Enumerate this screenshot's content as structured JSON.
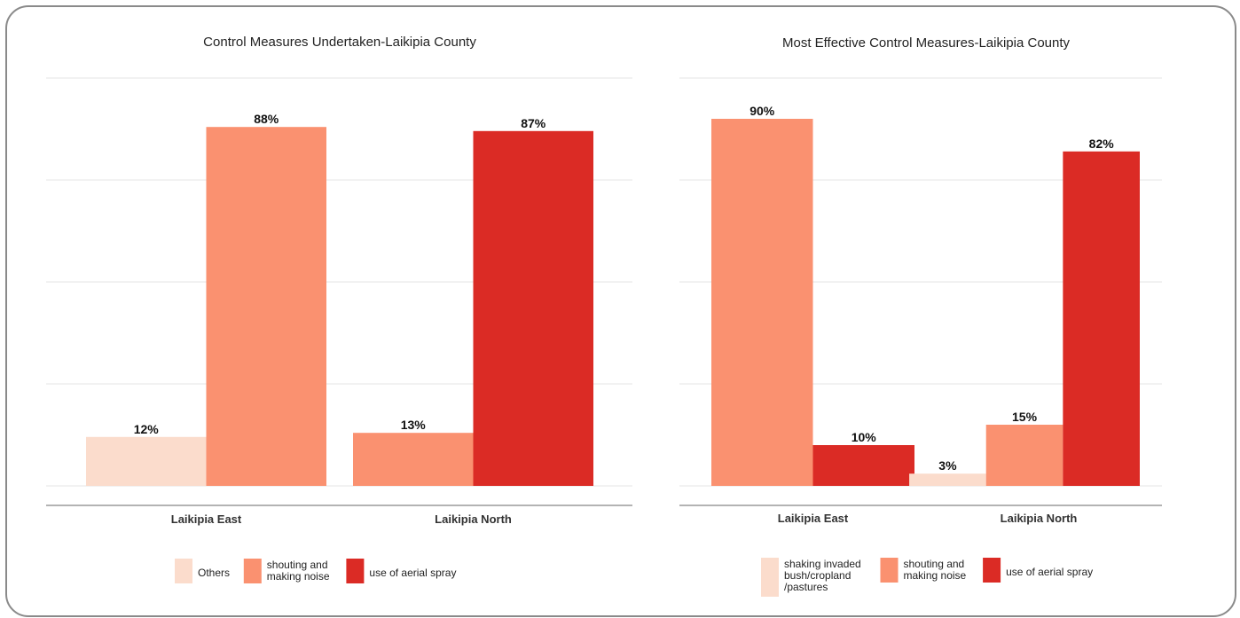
{
  "chart_data": [
    {
      "type": "bar",
      "title": "Control Measures Undertaken-Laikipia County",
      "categories": [
        "Laikipia East",
        "Laikipia North"
      ],
      "ylim": [
        0,
        100
      ],
      "grid": true,
      "legend_position": "bottom",
      "bar_groups": [
        {
          "category": "Laikipia East",
          "bars": [
            {
              "series": "Others",
              "value": 12,
              "label": "12%"
            },
            {
              "series": "shouting and making noise",
              "value": 88,
              "label": "88%"
            }
          ]
        },
        {
          "category": "Laikipia North",
          "bars": [
            {
              "series": "shouting and making noise",
              "value": 13,
              "label": "13%"
            },
            {
              "series": "use of aerial spray",
              "value": 87,
              "label": "87%"
            }
          ]
        }
      ],
      "legend": [
        {
          "series": "Others",
          "lines": [
            "Others"
          ],
          "color": "#fbdccc"
        },
        {
          "series": "shouting and making noise",
          "lines": [
            "shouting and",
            "making noise"
          ],
          "color": "#fa9170"
        },
        {
          "series": "use of aerial spray",
          "lines": [
            "use of aerial spray"
          ],
          "color": "#db2b25"
        }
      ]
    },
    {
      "type": "bar",
      "title": "Most Effective Control Measures-Laikipia County",
      "categories": [
        "Laikipia East",
        "Laikipia North"
      ],
      "ylim": [
        0,
        100
      ],
      "grid": true,
      "legend_position": "bottom",
      "bar_groups": [
        {
          "category": "Laikipia East",
          "bars": [
            {
              "series": "shouting and making noise",
              "value": 90,
              "label": "90%"
            },
            {
              "series": "use of aerial spray",
              "value": 10,
              "label": "10%"
            }
          ]
        },
        {
          "category": "Laikipia North",
          "bars": [
            {
              "series": "shaking invaded bush/cropland /pastures",
              "value": 3,
              "label": "3%"
            },
            {
              "series": "shouting and making noise",
              "value": 15,
              "label": "15%"
            },
            {
              "series": "use of aerial spray",
              "value": 82,
              "label": "82%"
            }
          ]
        }
      ],
      "legend": [
        {
          "series": "shaking invaded bush/cropland /pastures",
          "lines": [
            "shaking invaded",
            "bush/cropland",
            "/pastures"
          ],
          "color": "#fbdccc"
        },
        {
          "series": "shouting and making noise",
          "lines": [
            "shouting and",
            "making noise"
          ],
          "color": "#fa9170"
        },
        {
          "series": "use of aerial spray",
          "lines": [
            "use of aerial spray"
          ],
          "color": "#db2b25"
        }
      ]
    }
  ]
}
